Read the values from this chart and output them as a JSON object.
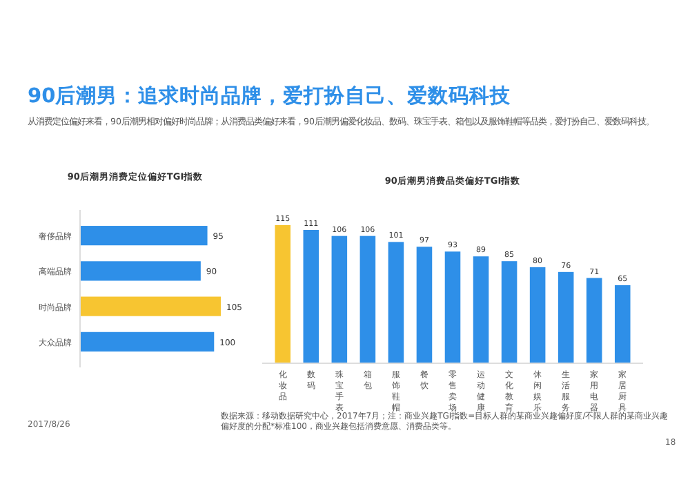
{
  "chart_data": [
    {
      "type": "bar",
      "orientation": "horizontal",
      "title": "90后潮男消费定位偏好TGI指数",
      "annotations": [
        "90后潮男：追求时尚品牌，爱打扮自己、爱数码科技",
        "从消费定位偏好来看，90后潮男相对偏好时尚品牌；从消费品类偏好来看，90后潮男偏爱化妆品、数码、珠宝手表、箱包以及服饰鞋帽等品类，爱打扮自己、爱数码科技。"
      ],
      "categories": [
        "奢侈品牌",
        "高端品牌",
        "时尚品牌",
        "大众品牌"
      ],
      "values": [
        95,
        90,
        105,
        100
      ],
      "colors": [
        "#2e8fe8",
        "#2e8fe8",
        "#f7c531",
        "#2e8fe8"
      ],
      "data_labels": true
    },
    {
      "type": "bar",
      "title": "90后潮男消费品类偏好TGI指数",
      "annotations": [
        "数据来源：移动数据研究中心，2017年7月；注：商业兴趣TGI指数=目标人群的某商业兴趣偏好度/不限人群的某商业兴趣偏好度的分配*标准100，商业兴趣包括消费意愿、消费品类等。",
        "2017/8/26",
        "18"
      ],
      "categories": [
        "化妆品",
        "数码",
        "珠宝手表",
        "箱包",
        "服饰鞋帽",
        "餐饮",
        "零售卖场",
        "运动健康",
        "文化教育",
        "休闲娱乐",
        "生活服务",
        "家用电器",
        "家居厨具"
      ],
      "values": [
        115,
        111,
        106,
        106,
        101,
        97,
        93,
        89,
        85,
        80,
        76,
        71,
        65
      ],
      "colors": [
        "#f7c531",
        "#2e8fe8",
        "#2e8fe8",
        "#2e8fe8",
        "#2e8fe8",
        "#2e8fe8",
        "#2e8fe8",
        "#2e8fe8",
        "#2e8fe8",
        "#2e8fe8",
        "#2e8fe8",
        "#2e8fe8",
        "#2e8fe8"
      ],
      "data_labels": true
    }
  ]
}
